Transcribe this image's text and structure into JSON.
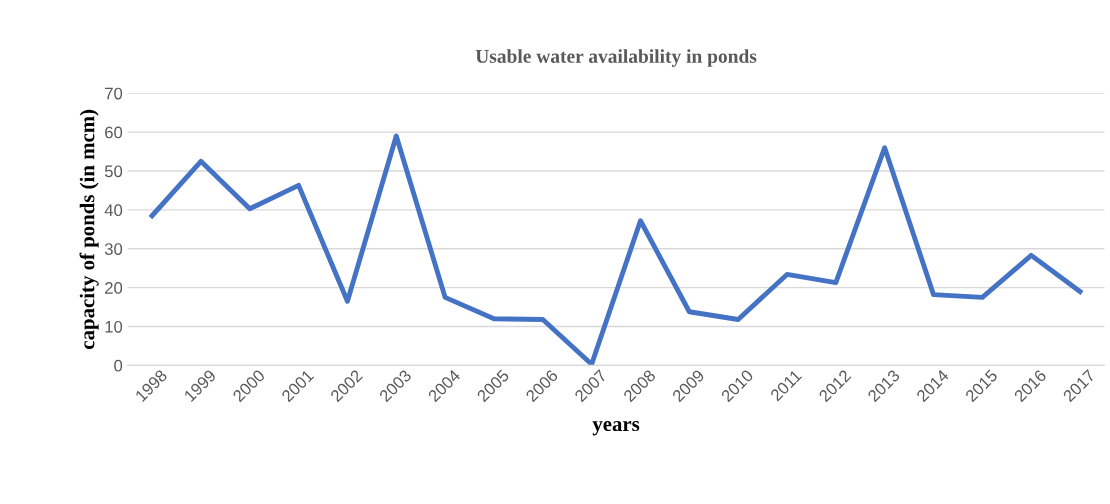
{
  "chart_data": {
    "type": "line",
    "title": "Usable water availability in ponds",
    "xlabel": "years",
    "ylabel": "capacity of ponds (in mcm)",
    "categories": [
      "1998",
      "1999",
      "2000",
      "2001",
      "2002",
      "2003",
      "2004",
      "2005",
      "2006",
      "2007",
      "2008",
      "2009",
      "2010",
      "2011",
      "2012",
      "2013",
      "2014",
      "2015",
      "2016",
      "2017"
    ],
    "series": [
      {
        "color": "#4472c4",
        "values": [
          38.5,
          52.5,
          40.3,
          46.3,
          16.5,
          59,
          17.5,
          12,
          11.8,
          0.3,
          37.2,
          13.8,
          11.8,
          23.4,
          21.3,
          56,
          18.2,
          17.5,
          28.3,
          19
        ]
      }
    ],
    "ylim": [
      0,
      70
    ],
    "yticks": [
      0,
      10,
      20,
      30,
      40,
      50,
      60,
      70
    ],
    "grid": "y",
    "legend": false,
    "marker": "none",
    "line_style": "solid"
  }
}
